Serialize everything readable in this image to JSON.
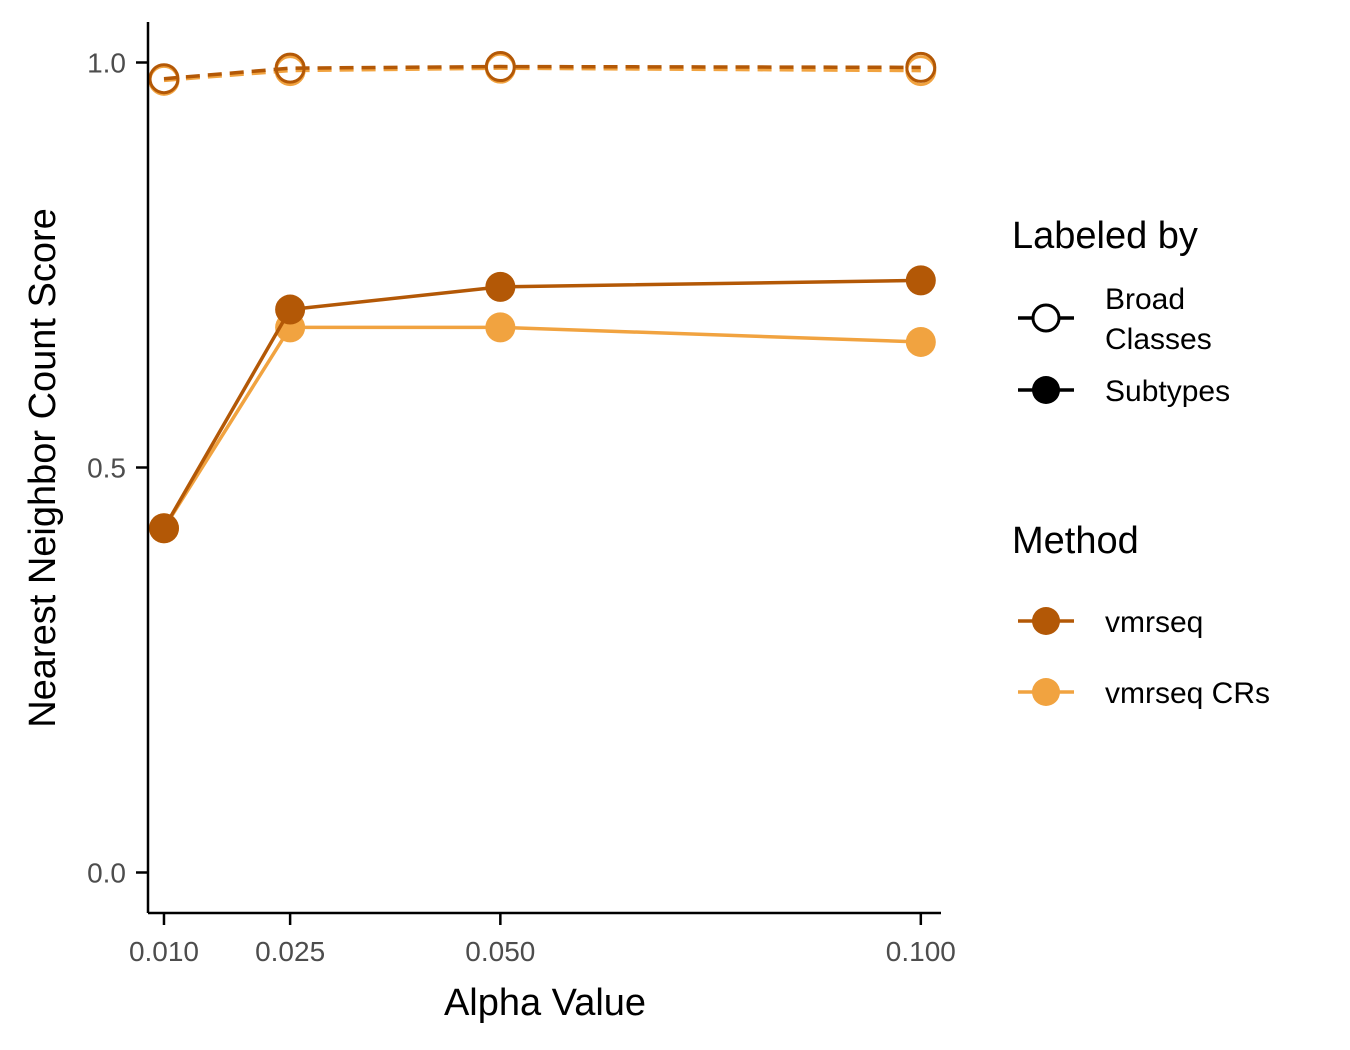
{
  "chart_data": {
    "type": "line",
    "xlabel": "Alpha Value",
    "ylabel": "Nearest Neighbor Count Score",
    "x": [
      0.01,
      0.025,
      0.05,
      0.1
    ],
    "x_tick_labels": [
      "0.010",
      "0.025",
      "0.050",
      "0.100"
    ],
    "y_ticks": [
      0.0,
      0.5,
      1.0
    ],
    "y_tick_labels": [
      "0.0",
      "0.5",
      "1.0"
    ],
    "xlim": [
      0.0081,
      0.1024
    ],
    "ylim": [
      -0.05,
      1.05
    ],
    "grid": false,
    "legend_position": "right",
    "series": [
      {
        "method": "vmrseq",
        "labeled_by": "Broad Classes",
        "values": [
          0.98,
          0.993,
          0.995,
          0.994
        ]
      },
      {
        "method": "vmrseq CRs",
        "labeled_by": "Broad Classes",
        "values": [
          0.978,
          0.99,
          0.993,
          0.99
        ]
      },
      {
        "method": "vmrseq",
        "labeled_by": "Subtypes",
        "values": [
          0.425,
          0.695,
          0.723,
          0.731
        ]
      },
      {
        "method": "vmrseq CRs",
        "labeled_by": "Subtypes",
        "values": [
          0.425,
          0.673,
          0.673,
          0.655
        ]
      }
    ],
    "legends": [
      {
        "title": "Labeled by",
        "items": [
          {
            "label": "Broad Classes",
            "lines": [
              "Broad",
              "Classes"
            ],
            "marker": "open-circle"
          },
          {
            "label": "Subtypes",
            "lines": [
              "Subtypes"
            ],
            "marker": "filled-circle"
          }
        ]
      },
      {
        "title": "Method",
        "items": [
          {
            "label": "vmrseq",
            "lines": [
              "vmrseq"
            ],
            "color": "#b35806"
          },
          {
            "label": "vmrseq CRs",
            "lines": [
              "vmrseq CRs"
            ],
            "color": "#f1a340"
          }
        ]
      }
    ],
    "colors": {
      "vmrseq": "#b35806",
      "vmrseq CRs": "#f1a340"
    },
    "line_styles": {
      "Broad Classes": "dashed",
      "Subtypes": "solid"
    }
  }
}
